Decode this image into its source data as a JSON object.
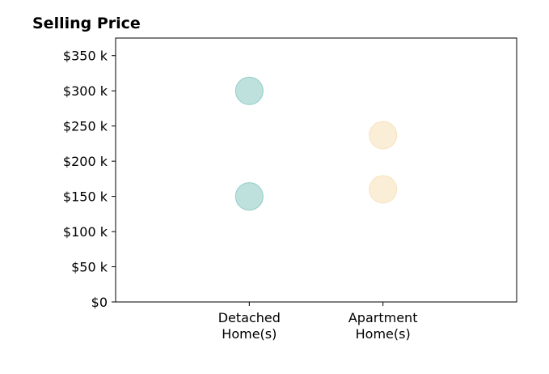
{
  "chart_data": {
    "type": "scatter",
    "title": "Selling Price",
    "xlabel": "",
    "ylabel": "",
    "categories": [
      [
        "Detached",
        "Home(s)"
      ],
      [
        "Apartment",
        "Home(s)"
      ]
    ],
    "xlim": [
      0,
      3
    ],
    "ylim": [
      0,
      375000
    ],
    "y_ticks": [
      {
        "value": 0,
        "label": "$0"
      },
      {
        "value": 50000,
        "label": "$50 k"
      },
      {
        "value": 100000,
        "label": "$100 k"
      },
      {
        "value": 150000,
        "label": "$150 k"
      },
      {
        "value": 200000,
        "label": "$200 k"
      },
      {
        "value": 250000,
        "label": "$250 k"
      },
      {
        "value": 300000,
        "label": "$300 k"
      },
      {
        "value": 350000,
        "label": "$350 k"
      }
    ],
    "series": [
      {
        "category_index": 0,
        "values": [
          300000,
          150000
        ],
        "color": "#7fc4bd"
      },
      {
        "category_index": 1,
        "values": [
          237000,
          160000
        ],
        "color": "#f5ddb0"
      }
    ],
    "marker_opacity": 0.5,
    "grid": false,
    "legend": "none"
  }
}
